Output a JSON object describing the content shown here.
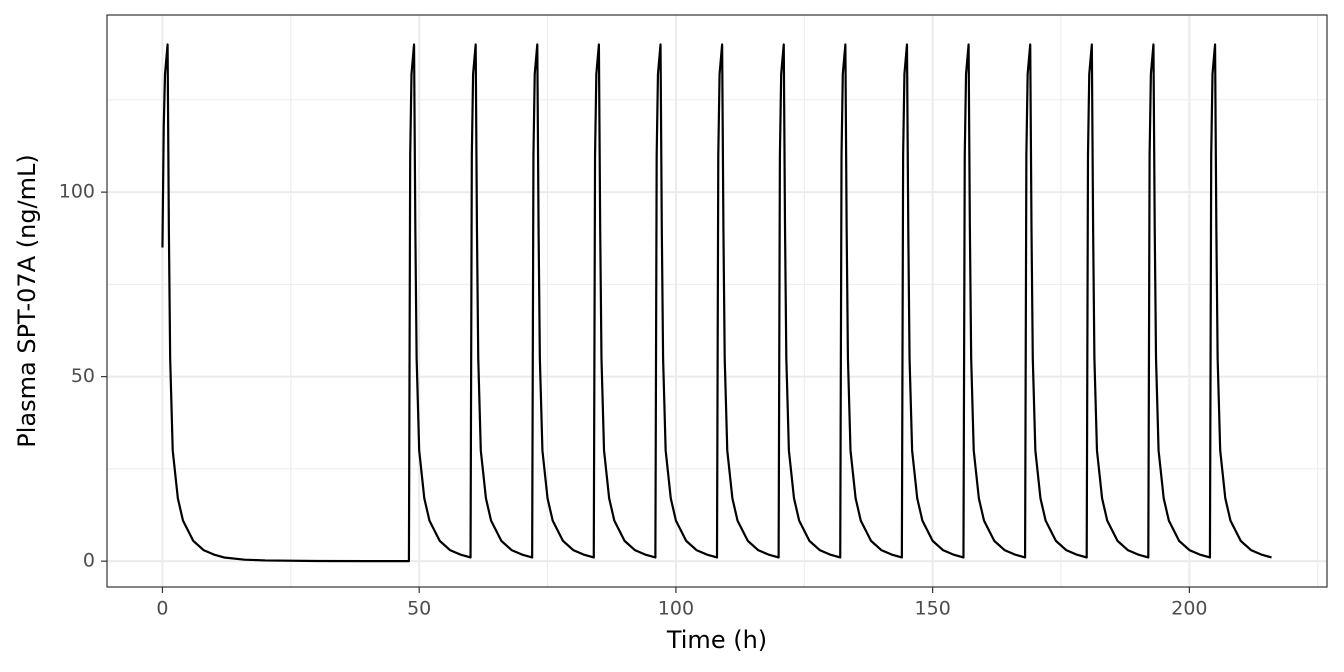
{
  "chart_data": {
    "type": "line",
    "x_label": "Time (h)",
    "y_label": "Plasma SPT-07A (ng/mL)",
    "color": "#000000",
    "grid": true,
    "xlim": [
      -10.8,
      226.8
    ],
    "ylim": [
      -7,
      148
    ],
    "xticks": [
      0,
      50,
      100,
      150,
      200
    ],
    "yticks": [
      0,
      50,
      100
    ],
    "x_minor_grid": [
      25,
      75,
      125,
      175,
      225
    ],
    "y_minor_grid": [
      25,
      75,
      125
    ],
    "x": [
      0,
      0.25,
      0.5,
      1,
      1.25,
      1.5,
      2,
      3,
      4,
      6,
      8,
      10,
      12,
      16,
      20,
      30,
      40,
      48,
      48.25,
      48.5,
      49,
      49.25,
      49.5,
      50,
      51,
      52,
      54,
      56,
      58,
      60,
      60.25,
      60.5,
      61,
      61.25,
      61.5,
      62,
      63,
      64,
      66,
      68,
      70,
      72,
      72.25,
      72.5,
      73,
      73.25,
      73.5,
      74,
      75,
      76,
      78,
      80,
      82,
      84,
      84.25,
      84.5,
      85,
      85.25,
      85.5,
      86,
      87,
      88,
      90,
      92,
      94,
      96,
      96.25,
      96.5,
      97,
      97.25,
      97.5,
      98,
      99,
      100,
      102,
      104,
      106,
      108,
      108.25,
      108.5,
      109,
      109.25,
      109.5,
      110,
      111,
      112,
      114,
      116,
      118,
      120,
      120.25,
      120.5,
      121,
      121.25,
      121.5,
      122,
      123,
      124,
      126,
      128,
      130,
      132,
      132.25,
      132.5,
      133,
      133.25,
      133.5,
      134,
      135,
      136,
      138,
      140,
      142,
      144,
      144.25,
      144.5,
      145,
      145.25,
      145.5,
      146,
      147,
      148,
      150,
      152,
      154,
      156,
      156.25,
      156.5,
      157,
      157.25,
      157.5,
      158,
      159,
      160,
      162,
      164,
      166,
      168,
      168.25,
      168.5,
      169,
      169.25,
      169.5,
      170,
      171,
      172,
      174,
      176,
      178,
      180,
      180.25,
      180.5,
      181,
      181.25,
      181.5,
      182,
      183,
      184,
      186,
      188,
      190,
      192,
      192.25,
      192.5,
      193,
      193.25,
      193.5,
      194,
      195,
      196,
      198,
      200,
      202,
      204,
      204.25,
      204.5,
      205,
      205.25,
      205.5,
      206,
      207,
      208,
      210,
      212,
      214,
      216
    ],
    "values": [
      85,
      118,
      132,
      140,
      90,
      55,
      30,
      17,
      11,
      5.5,
      3,
      1.8,
      1,
      0.4,
      0.2,
      0.05,
      0.02,
      0.02,
      110,
      132,
      140,
      90,
      55,
      30,
      17,
      11,
      5.5,
      3,
      1.8,
      1,
      110,
      132,
      140,
      90,
      55,
      30,
      17,
      11,
      5.5,
      3,
      1.8,
      1,
      110,
      132,
      140,
      90,
      55,
      30,
      17,
      11,
      5.5,
      3,
      1.8,
      1,
      110,
      132,
      140,
      90,
      55,
      30,
      17,
      11,
      5.5,
      3,
      1.8,
      1,
      110,
      132,
      140,
      90,
      55,
      30,
      17,
      11,
      5.5,
      3,
      1.8,
      1,
      110,
      132,
      140,
      90,
      55,
      30,
      17,
      11,
      5.5,
      3,
      1.8,
      1,
      110,
      132,
      140,
      90,
      55,
      30,
      17,
      11,
      5.5,
      3,
      1.8,
      1,
      110,
      132,
      140,
      90,
      55,
      30,
      17,
      11,
      5.5,
      3,
      1.8,
      1,
      110,
      132,
      140,
      90,
      55,
      30,
      17,
      11,
      5.5,
      3,
      1.8,
      1,
      110,
      132,
      140,
      90,
      55,
      30,
      17,
      11,
      5.5,
      3,
      1.8,
      1,
      110,
      132,
      140,
      90,
      55,
      30,
      17,
      11,
      5.5,
      3,
      1.8,
      1,
      110,
      132,
      140,
      90,
      55,
      30,
      17,
      11,
      5.5,
      3,
      1.8,
      1,
      110,
      132,
      140,
      90,
      55,
      30,
      17,
      11,
      5.5,
      3,
      1.8,
      1,
      110,
      132,
      140,
      90,
      55,
      30,
      17,
      11,
      5.5,
      3,
      1.8,
      1
    ]
  }
}
